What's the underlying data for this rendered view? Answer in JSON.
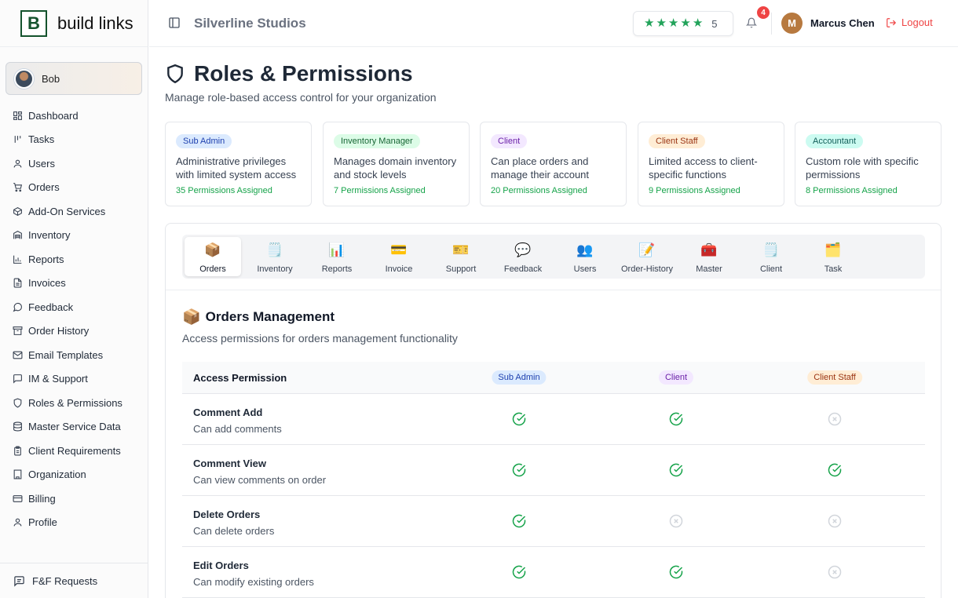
{
  "brand": {
    "logo_letter": "B",
    "name": "build links"
  },
  "sidebar_user": {
    "name": "Bob"
  },
  "nav": [
    {
      "label": "Dashboard",
      "icon": "dashboard-icon"
    },
    {
      "label": "Tasks",
      "icon": "tasks-icon"
    },
    {
      "label": "Users",
      "icon": "user-icon"
    },
    {
      "label": "Orders",
      "icon": "cart-icon"
    },
    {
      "label": "Add-On Services",
      "icon": "package-icon"
    },
    {
      "label": "Inventory",
      "icon": "warehouse-icon"
    },
    {
      "label": "Reports",
      "icon": "bar-chart-icon"
    },
    {
      "label": "Invoices",
      "icon": "file-text-icon"
    },
    {
      "label": "Feedback",
      "icon": "message-circle-icon"
    },
    {
      "label": "Order History",
      "icon": "archive-icon"
    },
    {
      "label": "Email Templates",
      "icon": "mail-icon"
    },
    {
      "label": "IM & Support",
      "icon": "message-square-icon"
    },
    {
      "label": "Roles & Permissions",
      "icon": "shield-icon"
    },
    {
      "label": "Master Service Data",
      "icon": "database-icon"
    },
    {
      "label": "Client Requirements",
      "icon": "clipboard-icon"
    },
    {
      "label": "Organization",
      "icon": "building-icon"
    },
    {
      "label": "Billing",
      "icon": "credit-card-icon"
    },
    {
      "label": "Profile",
      "icon": "user-icon"
    }
  ],
  "sidebar_footer": {
    "label": "F&F Requests",
    "icon": "message-square-text-icon"
  },
  "header": {
    "org": "Silverline Studios",
    "rating_stars": 5,
    "rating_value": "5",
    "notifications": "4",
    "avatar_letter": "M",
    "user": "Marcus Chen",
    "logout": "Logout"
  },
  "page": {
    "title": "Roles & Permissions",
    "subtitle": "Manage role-based access control for your organization"
  },
  "roles": [
    {
      "name": "Sub Admin",
      "desc": "Administrative privileges with limited system access",
      "count": "35 Permissions Assigned",
      "bg": "#dbeafe",
      "fg": "#1e40af"
    },
    {
      "name": "Inventory Manager",
      "desc": "Manages domain inventory and stock levels",
      "count": "7 Permissions Assigned",
      "bg": "#dcfce7",
      "fg": "#166534"
    },
    {
      "name": "Client",
      "desc": "Can place orders and manage their account",
      "count": "20 Permissions Assigned",
      "bg": "#f3e8ff",
      "fg": "#6b21a8"
    },
    {
      "name": "Client Staff",
      "desc": "Limited access to client-specific functions",
      "count": "9 Permissions Assigned",
      "bg": "#ffedd5",
      "fg": "#9a3412"
    },
    {
      "name": "Accountant",
      "desc": "Custom role with specific permissions",
      "count": "8 Permissions Assigned",
      "bg": "#ccfbf1",
      "fg": "#115e59"
    }
  ],
  "tabs": [
    {
      "label": "Orders",
      "emoji": "📦",
      "active": true
    },
    {
      "label": "Inventory",
      "emoji": "🗒️"
    },
    {
      "label": "Reports",
      "emoji": "📊"
    },
    {
      "label": "Invoice",
      "emoji": "💳"
    },
    {
      "label": "Support",
      "emoji": "🎫"
    },
    {
      "label": "Feedback",
      "emoji": "💬"
    },
    {
      "label": "Users",
      "emoji": "👥"
    },
    {
      "label": "Order-History",
      "emoji": "📝"
    },
    {
      "label": "Master",
      "emoji": "🧰"
    },
    {
      "label": "Client",
      "emoji": "🗒️"
    },
    {
      "label": "Task",
      "emoji": "🗂️"
    }
  ],
  "section": {
    "emoji": "📦",
    "title": "Orders Management",
    "subtitle": "Access permissions for orders management functionality"
  },
  "table": {
    "first_header": "Access Permission",
    "columns": [
      {
        "name": "Sub Admin",
        "bg": "#dbeafe",
        "fg": "#1e40af"
      },
      {
        "name": "Client",
        "bg": "#f3e8ff",
        "fg": "#6b21a8"
      },
      {
        "name": "Client Staff",
        "bg": "#ffedd5",
        "fg": "#9a3412"
      }
    ],
    "rows": [
      {
        "name": "Comment Add",
        "desc": "Can add comments",
        "access": [
          true,
          true,
          false
        ]
      },
      {
        "name": "Comment View",
        "desc": "Can view comments on order",
        "access": [
          true,
          true,
          true
        ]
      },
      {
        "name": "Delete Orders",
        "desc": "Can delete orders",
        "access": [
          true,
          false,
          false
        ]
      },
      {
        "name": "Edit Orders",
        "desc": "Can modify existing orders",
        "access": [
          true,
          true,
          false
        ]
      }
    ]
  },
  "colors": {
    "granted": "#16a34a",
    "denied": "#d1d5db",
    "logout": "#ef4444",
    "star": "#22a35a"
  }
}
